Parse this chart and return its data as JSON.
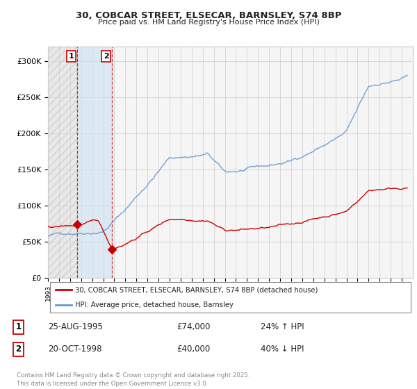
{
  "title1": "30, COBCAR STREET, ELSECAR, BARNSLEY, S74 8BP",
  "title2": "Price paid vs. HM Land Registry's House Price Index (HPI)",
  "ylim": [
    0,
    320000
  ],
  "yticks": [
    0,
    50000,
    100000,
    150000,
    200000,
    250000,
    300000
  ],
  "ytick_labels": [
    "£0",
    "£50K",
    "£100K",
    "£150K",
    "£200K",
    "£250K",
    "£300K"
  ],
  "purchase1_date": 1995.65,
  "purchase1_price": 74000,
  "purchase2_date": 1998.8,
  "purchase2_price": 40000,
  "property_color": "#cc0000",
  "hpi_color": "#6699cc",
  "legend_property": "30, COBCAR STREET, ELSECAR, BARNSLEY, S74 8BP (detached house)",
  "legend_hpi": "HPI: Average price, detached house, Barnsley",
  "table_row1": [
    "1",
    "25-AUG-1995",
    "£74,000",
    "24% ↑ HPI"
  ],
  "table_row2": [
    "2",
    "20-OCT-1998",
    "£40,000",
    "40% ↓ HPI"
  ],
  "footer": "Contains HM Land Registry data © Crown copyright and database right 2025.\nThis data is licensed under the Open Government Licence v3.0.",
  "background_color": "#ffffff",
  "grid_color": "#cccccc",
  "hatch_color_1": "#bbbbbb",
  "hatch_color_2": "#aaccee"
}
